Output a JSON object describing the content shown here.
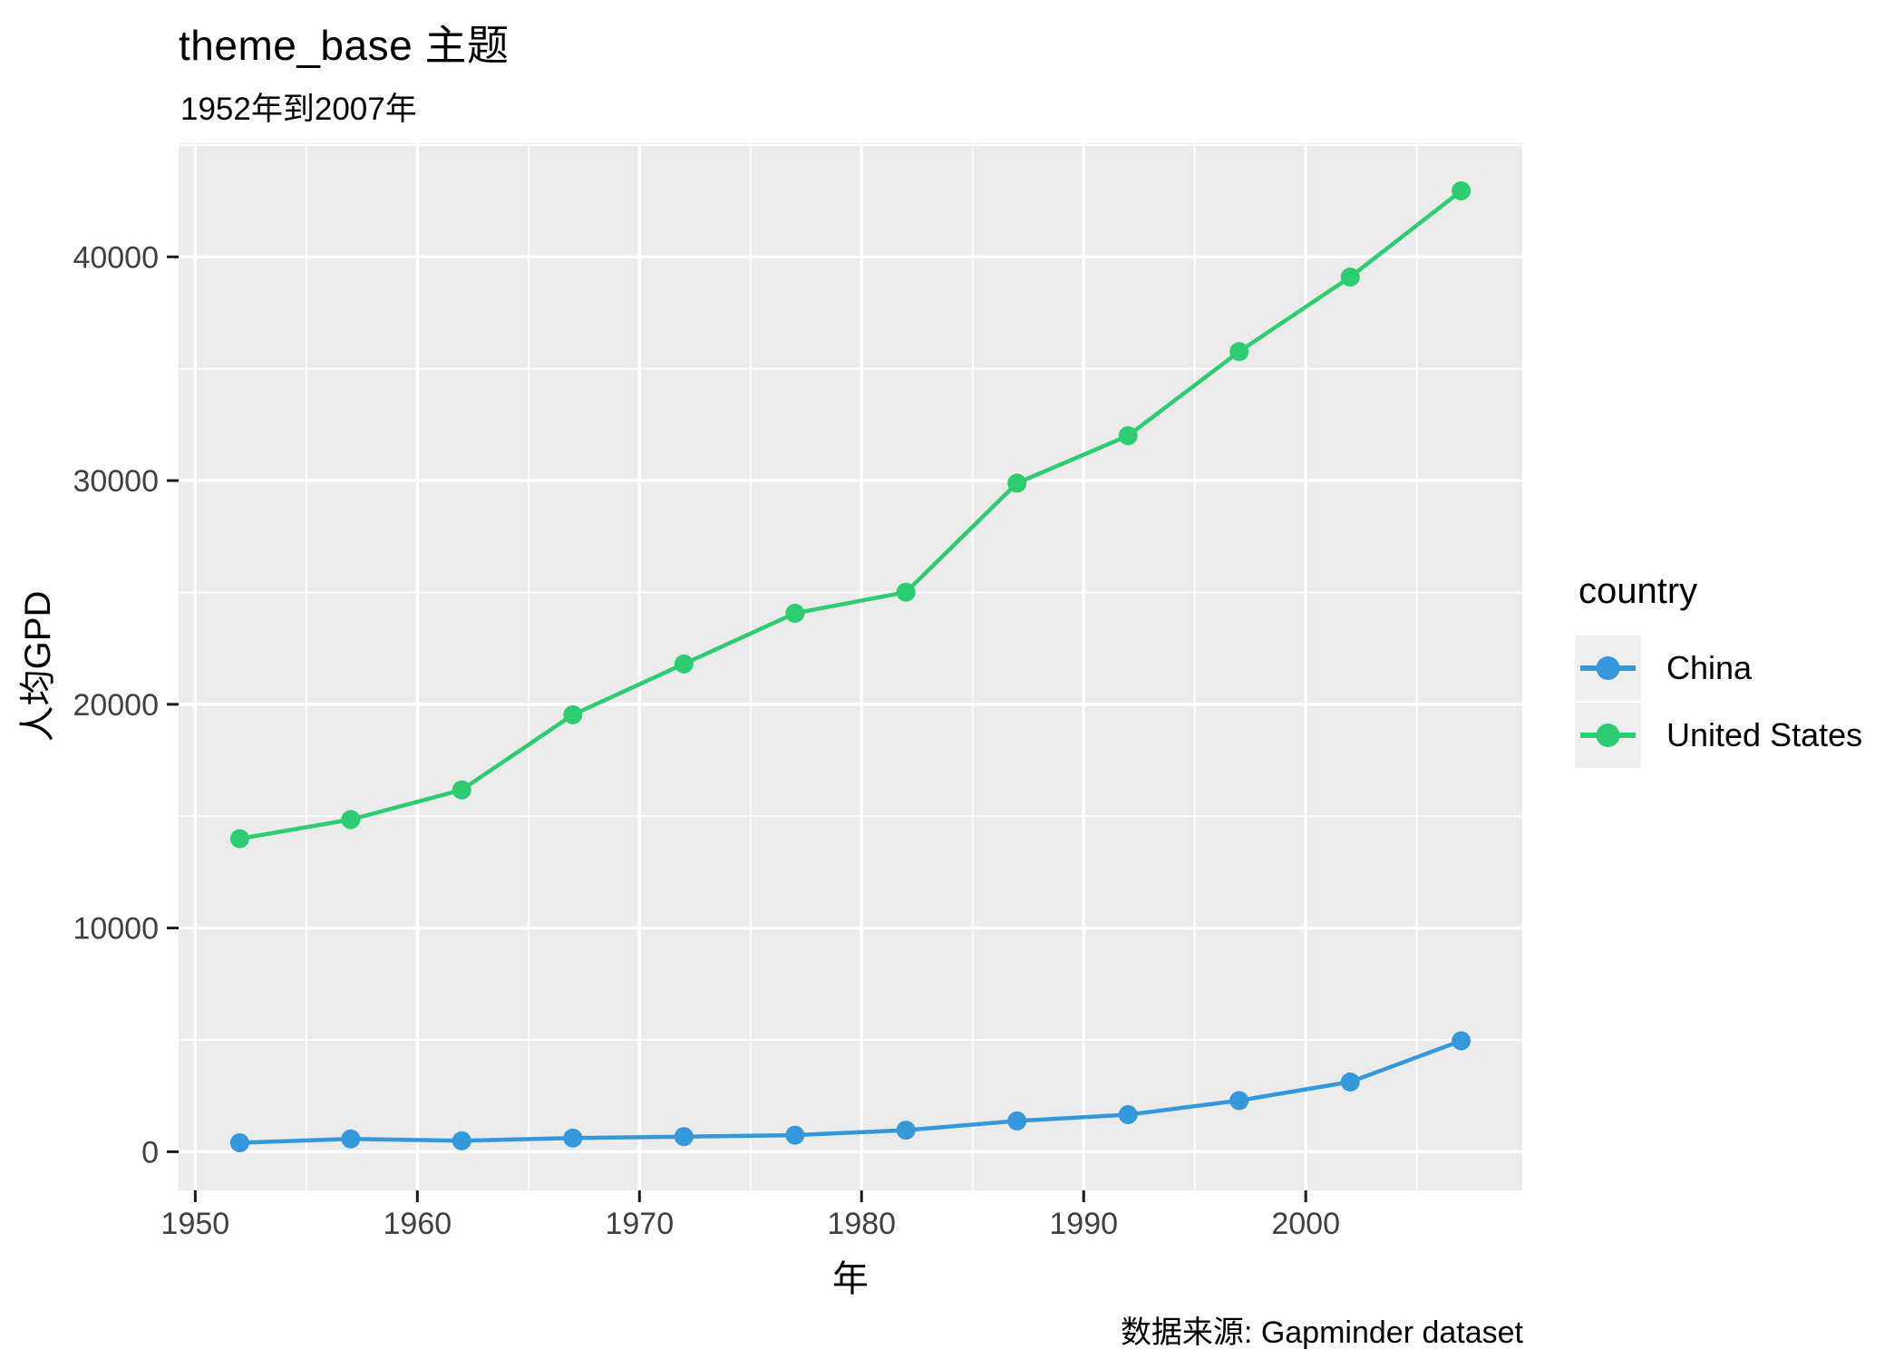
{
  "chart_data": {
    "type": "line",
    "title": "theme_base 主题",
    "subtitle": "1952年到2007年",
    "xlabel": "年",
    "ylabel": "人均GPD",
    "caption": "数据来源: Gapminder dataset",
    "legend_title": "country",
    "x": [
      1952,
      1957,
      1962,
      1967,
      1972,
      1977,
      1982,
      1987,
      1992,
      1997,
      2002,
      2007
    ],
    "series": [
      {
        "name": "China",
        "color": "#3498DB",
        "values": [
          400.4,
          576.0,
          487.7,
          612.7,
          676.9,
          741.2,
          962.4,
          1378.9,
          1655.8,
          2289.2,
          3119.3,
          4959.1
        ]
      },
      {
        "name": "United States",
        "color": "#2ECC71",
        "values": [
          13990.5,
          14847.1,
          16173.1,
          19530.4,
          21806.0,
          24072.6,
          25009.6,
          29884.4,
          32003.9,
          35767.4,
          39097.1,
          42951.7
        ]
      }
    ],
    "x_ticks": [
      "1950",
      "1960",
      "1970",
      "1980",
      "1990",
      "2000"
    ],
    "x_tick_values": [
      1950,
      1960,
      1970,
      1980,
      1990,
      2000
    ],
    "y_ticks": [
      "0",
      "10000",
      "20000",
      "30000",
      "40000"
    ],
    "y_tick_values": [
      0,
      10000,
      20000,
      30000,
      40000
    ],
    "x_minor": [
      1955,
      1965,
      1975,
      1985,
      1995,
      2005
    ],
    "y_minor": [
      5000,
      15000,
      25000,
      35000,
      45000
    ],
    "xlim": [
      1949.25,
      2009.75
    ],
    "ylim": [
      -1727,
      45079
    ],
    "grid": true,
    "legend_position": "right",
    "colors": {
      "panel_bg": "#EBEBEB",
      "grid": "#FFFFFF",
      "legend_key_bg": "#EFEFEF",
      "tick_mark": "#1A1A1A",
      "tick_label": "#404040",
      "text": "#000000"
    }
  }
}
